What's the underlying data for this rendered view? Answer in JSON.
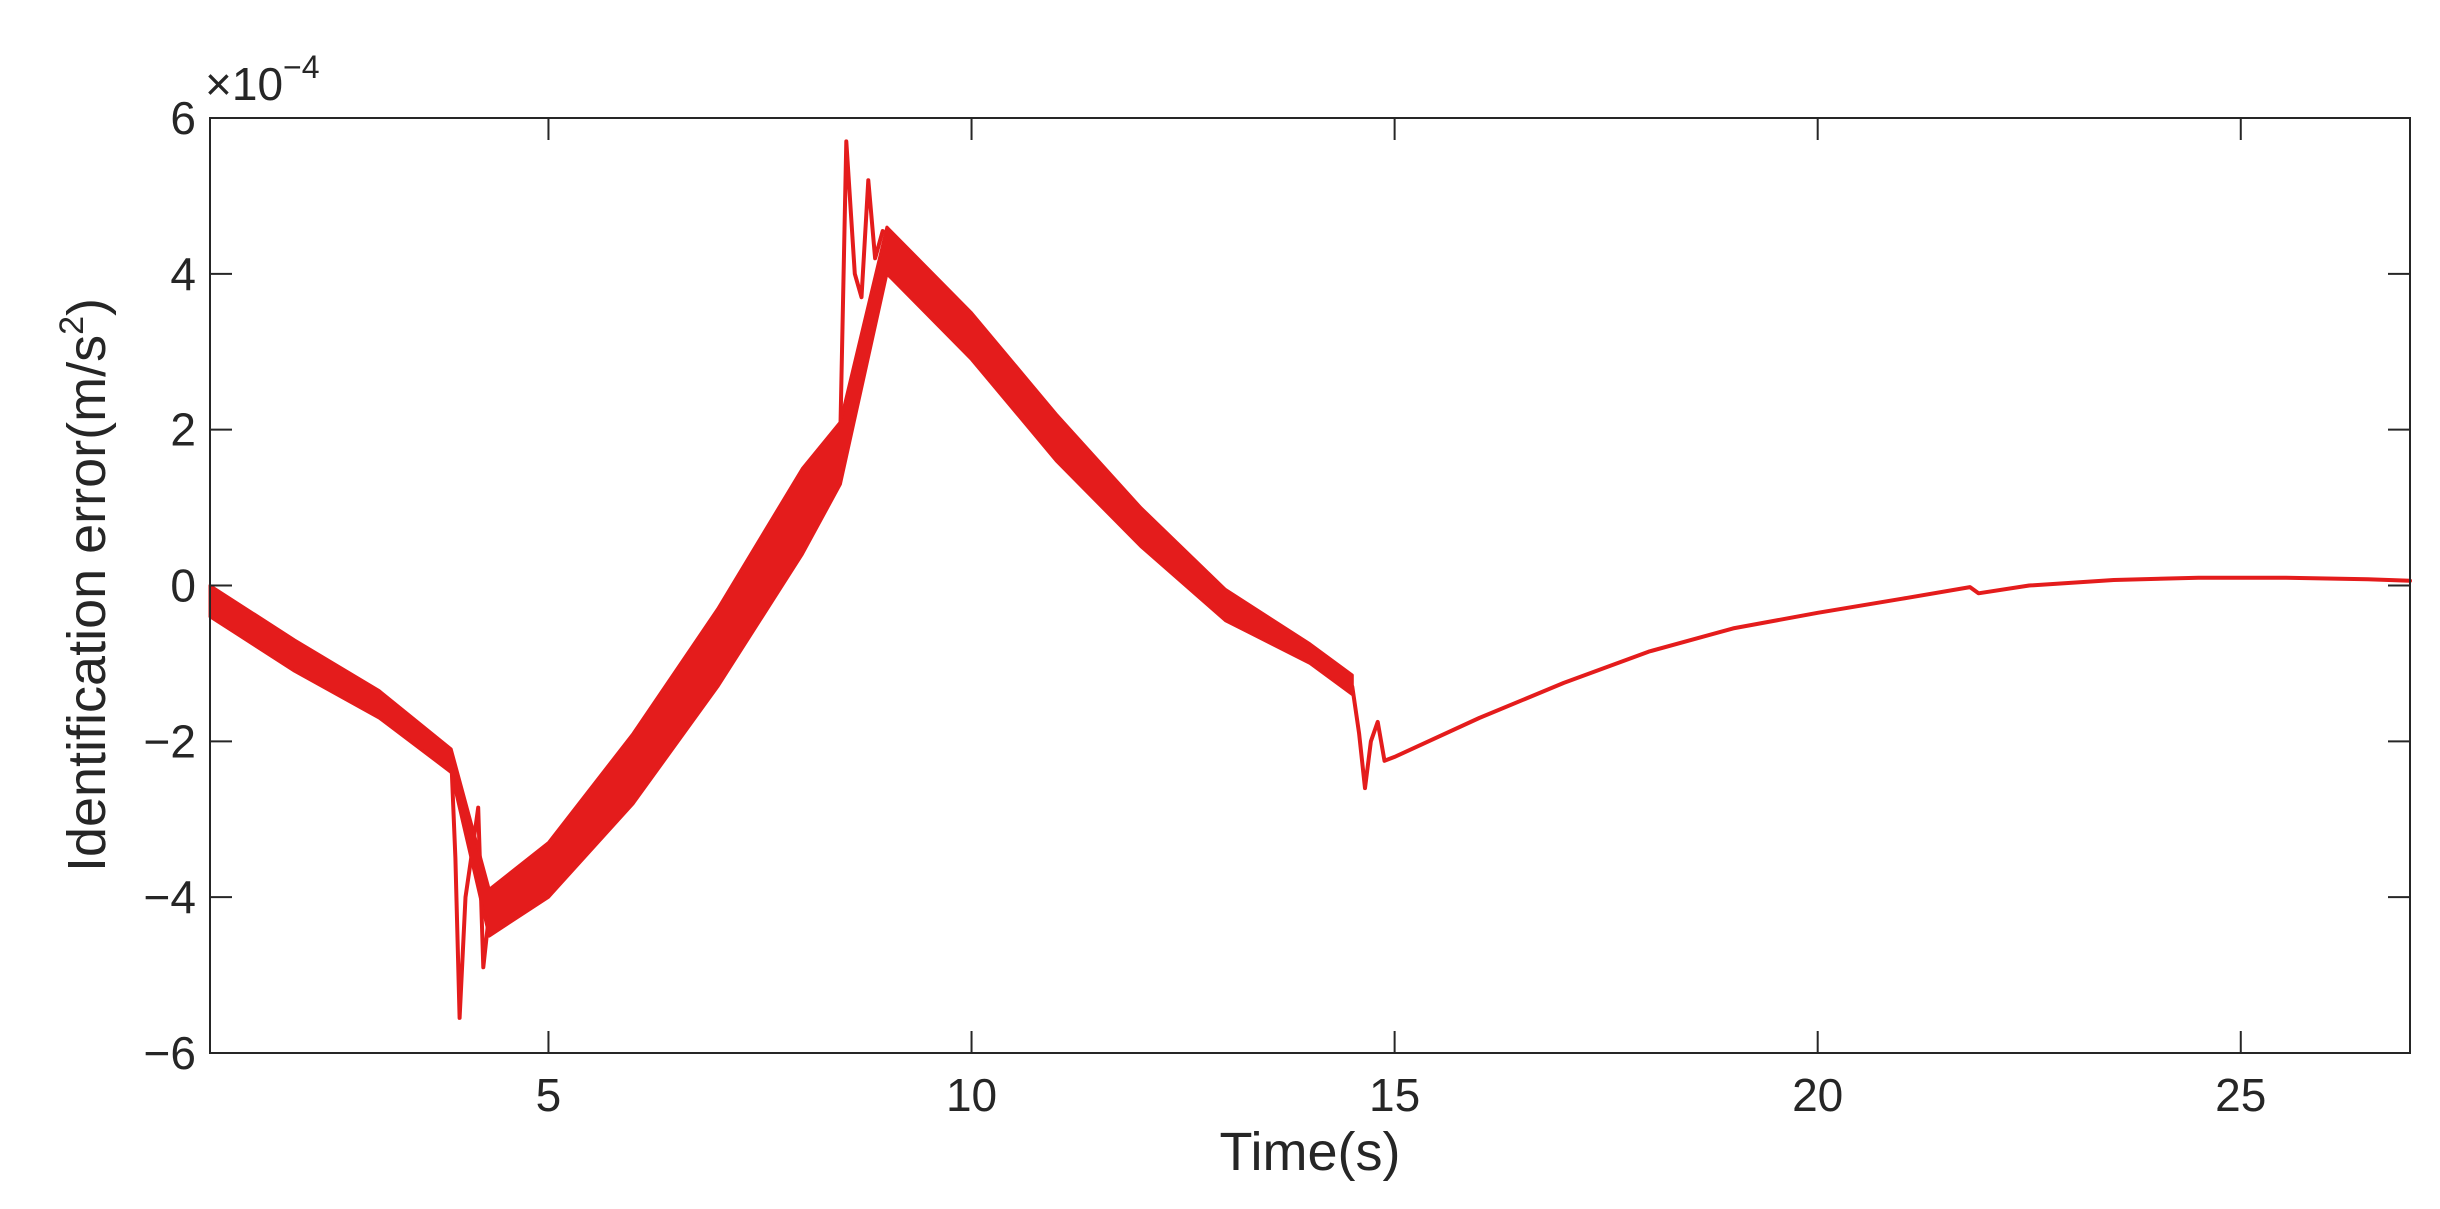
{
  "chart_data": {
    "type": "line",
    "title": "",
    "xlabel": "Time(s)",
    "ylabel": {
      "text": "Identification error(m/s",
      "superscript": "2",
      "suffix": ")"
    },
    "y_multiplier": {
      "base": "×10",
      "exponent": "−4"
    },
    "xlim": [
      1,
      27
    ],
    "ylim": [
      -6,
      6
    ],
    "grid": false,
    "legend": "none",
    "box": "on",
    "x_ticks": [
      {
        "value": 5,
        "label": "5"
      },
      {
        "value": 10,
        "label": "10"
      },
      {
        "value": 15,
        "label": "15"
      },
      {
        "value": 20,
        "label": "20"
      },
      {
        "value": 25,
        "label": "25"
      }
    ],
    "y_ticks": [
      {
        "value": -6,
        "label": "−6"
      },
      {
        "value": -4,
        "label": "−4"
      },
      {
        "value": -2,
        "label": "−2"
      },
      {
        "value": 0,
        "label": "0"
      },
      {
        "value": 2,
        "label": "2"
      },
      {
        "value": 4,
        "label": "4"
      },
      {
        "value": 6,
        "label": "6"
      }
    ],
    "series": [
      {
        "color": "#e41c1c",
        "band": [
          {
            "x": 1.0,
            "lo": -0.4,
            "hi": 0.0
          },
          {
            "x": 2.0,
            "lo": -1.1,
            "hi": -0.7
          },
          {
            "x": 3.0,
            "lo": -1.7,
            "hi": -1.35
          },
          {
            "x": 3.85,
            "lo": -2.4,
            "hi": -2.1
          },
          {
            "x": 4.3,
            "lo": -4.5,
            "hi": -3.9
          },
          {
            "x": 5.0,
            "lo": -4.0,
            "hi": -3.3
          },
          {
            "x": 6.0,
            "lo": -2.8,
            "hi": -1.9
          },
          {
            "x": 7.0,
            "lo": -1.3,
            "hi": -0.3
          },
          {
            "x": 8.0,
            "lo": 0.4,
            "hi": 1.5
          },
          {
            "x": 8.45,
            "lo": 1.3,
            "hi": 2.1
          },
          {
            "x": 9.0,
            "lo": 4.0,
            "hi": 4.6
          },
          {
            "x": 10.0,
            "lo": 2.9,
            "hi": 3.5
          },
          {
            "x": 11.0,
            "lo": 1.6,
            "hi": 2.2
          },
          {
            "x": 12.0,
            "lo": 0.5,
            "hi": 1.0
          },
          {
            "x": 13.0,
            "lo": -0.45,
            "hi": -0.05
          },
          {
            "x": 14.0,
            "lo": -1.0,
            "hi": -0.75
          },
          {
            "x": 14.5,
            "lo": -1.4,
            "hi": -1.15
          }
        ],
        "lines": [
          [
            {
              "x": 3.85,
              "y": -2.2
            },
            {
              "x": 3.9,
              "y": -3.5
            },
            {
              "x": 3.95,
              "y": -5.55
            },
            {
              "x": 4.02,
              "y": -4.0
            },
            {
              "x": 4.1,
              "y": -3.4
            },
            {
              "x": 4.17,
              "y": -2.85
            },
            {
              "x": 4.23,
              "y": -4.9
            },
            {
              "x": 4.3,
              "y": -4.2
            }
          ],
          [
            {
              "x": 8.45,
              "y": 2.0
            },
            {
              "x": 8.52,
              "y": 5.7
            },
            {
              "x": 8.62,
              "y": 4.0
            },
            {
              "x": 8.7,
              "y": 3.7
            },
            {
              "x": 8.78,
              "y": 5.2
            },
            {
              "x": 8.86,
              "y": 4.2
            },
            {
              "x": 8.95,
              "y": 4.55
            }
          ],
          [
            {
              "x": 14.5,
              "y": -1.3
            },
            {
              "x": 14.58,
              "y": -1.9
            },
            {
              "x": 14.65,
              "y": -2.6
            },
            {
              "x": 14.72,
              "y": -2.0
            },
            {
              "x": 14.8,
              "y": -1.75
            },
            {
              "x": 14.88,
              "y": -2.25
            },
            {
              "x": 15.0,
              "y": -2.2
            },
            {
              "x": 16.0,
              "y": -1.7
            },
            {
              "x": 17.0,
              "y": -1.25
            },
            {
              "x": 18.0,
              "y": -0.85
            },
            {
              "x": 19.0,
              "y": -0.55
            },
            {
              "x": 20.0,
              "y": -0.35
            },
            {
              "x": 21.0,
              "y": -0.17
            },
            {
              "x": 21.8,
              "y": -0.02
            },
            {
              "x": 21.9,
              "y": -0.1
            },
            {
              "x": 22.5,
              "y": 0.0
            },
            {
              "x": 23.5,
              "y": 0.07
            },
            {
              "x": 24.5,
              "y": 0.1
            },
            {
              "x": 25.5,
              "y": 0.1
            },
            {
              "x": 26.5,
              "y": 0.08
            },
            {
              "x": 27.0,
              "y": 0.06
            }
          ]
        ]
      }
    ]
  }
}
